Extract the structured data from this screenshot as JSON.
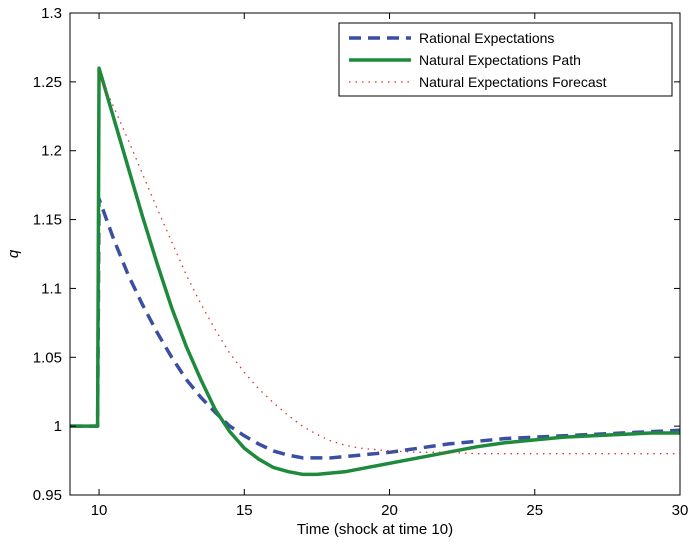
{
  "chart_data": {
    "type": "line",
    "title": "",
    "xlabel": "Time (shock at time 10)",
    "ylabel": "q",
    "xlim": [
      9,
      30
    ],
    "ylim": [
      0.95,
      1.3
    ],
    "xticks": [
      10,
      15,
      20,
      25,
      30
    ],
    "yticks": [
      0.95,
      1.0,
      1.05,
      1.1,
      1.15,
      1.2,
      1.25,
      1.3
    ],
    "ytick_labels": [
      "0.95",
      "1",
      "1.05",
      "1.1",
      "1.15",
      "1.2",
      "1.25",
      "1.3"
    ],
    "grid": false,
    "legend_position": "top-right",
    "series": [
      {
        "name": "Rational Expectations",
        "color": "#3a4fa3",
        "style": "dashed",
        "x": [
          9,
          9.9,
          9.95,
          10,
          10.5,
          11,
          11.5,
          12,
          12.5,
          13,
          13.5,
          14,
          14.5,
          15,
          15.5,
          16,
          16.5,
          17,
          17.5,
          18,
          18.5,
          19,
          19.5,
          20,
          21,
          22,
          23,
          24,
          25,
          26,
          27,
          28,
          29,
          30
        ],
        "y": [
          1.0,
          1.0,
          1.0,
          1.165,
          1.136,
          1.11,
          1.088,
          1.068,
          1.05,
          1.034,
          1.021,
          1.01,
          1.0,
          0.993,
          0.987,
          0.982,
          0.979,
          0.977,
          0.977,
          0.977,
          0.978,
          0.979,
          0.98,
          0.981,
          0.984,
          0.987,
          0.989,
          0.991,
          0.992,
          0.993,
          0.994,
          0.995,
          0.996,
          0.997
        ]
      },
      {
        "name": "Natural Expectations Path",
        "color": "#1e8a3c",
        "style": "solid",
        "x": [
          9,
          9.9,
          9.95,
          10,
          10.5,
          11,
          11.5,
          12,
          12.5,
          13,
          13.5,
          14,
          14.5,
          15,
          15.5,
          16,
          16.5,
          17,
          17.5,
          18,
          18.5,
          19,
          19.5,
          20,
          21,
          22,
          23,
          24,
          25,
          26,
          27,
          28,
          29,
          30
        ],
        "y": [
          1.0,
          1.0,
          1.0,
          1.26,
          1.224,
          1.188,
          1.152,
          1.118,
          1.086,
          1.058,
          1.034,
          1.012,
          0.996,
          0.984,
          0.976,
          0.97,
          0.967,
          0.965,
          0.965,
          0.966,
          0.967,
          0.969,
          0.971,
          0.973,
          0.977,
          0.981,
          0.985,
          0.988,
          0.99,
          0.992,
          0.993,
          0.994,
          0.995,
          0.995
        ]
      },
      {
        "name": "Natural Expectations Forecast",
        "color": "#e0302a",
        "style": "dotted",
        "x": [
          10,
          10.5,
          11,
          11.5,
          12,
          12.5,
          13,
          13.5,
          14,
          14.5,
          15,
          15.5,
          16,
          16.5,
          17,
          17.5,
          18,
          18.5,
          19,
          19.5,
          20,
          21,
          22,
          23,
          24,
          25,
          26,
          27,
          28,
          29,
          30
        ],
        "y": [
          1.255,
          1.232,
          1.208,
          1.183,
          1.158,
          1.134,
          1.11,
          1.089,
          1.07,
          1.053,
          1.039,
          1.027,
          1.017,
          1.008,
          1.0,
          0.994,
          0.989,
          0.986,
          0.984,
          0.983,
          0.982,
          0.981,
          0.981,
          0.98,
          0.98,
          0.98,
          0.98,
          0.98,
          0.98,
          0.98,
          0.98
        ]
      }
    ]
  }
}
